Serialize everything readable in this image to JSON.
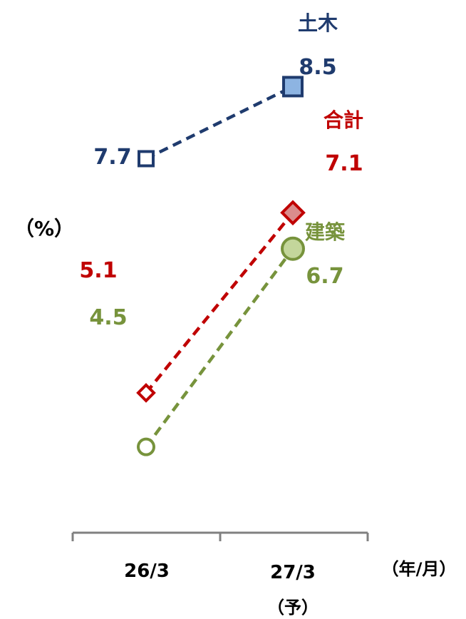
{
  "chart_data": {
    "type": "line",
    "ylabel": "（%）",
    "xlabel": "（年/月）",
    "categories": [
      "26/3",
      "27/3"
    ],
    "category_sublabels": [
      "",
      "（予）"
    ],
    "series": [
      {
        "name": "土木",
        "values": [
          7.7,
          8.5
        ],
        "color": "#1f3b6e",
        "fill": "#8db4e2",
        "marker": "square",
        "line": "dashed"
      },
      {
        "name": "合計",
        "values": [
          5.1,
          7.1
        ],
        "color": "#c00000",
        "fill": "#da8c8c",
        "marker": "diamond",
        "line": "dashed"
      },
      {
        "name": "建築",
        "values": [
          4.5,
          6.7
        ],
        "color": "#77933c",
        "fill": "#c3d69b",
        "marker": "circle",
        "line": "dashed"
      }
    ],
    "value_labels": [
      [
        "7.7",
        "8.5"
      ],
      [
        "5.1",
        "7.1"
      ],
      [
        "4.5",
        "6.7"
      ]
    ],
    "legend": "inline-labels"
  }
}
